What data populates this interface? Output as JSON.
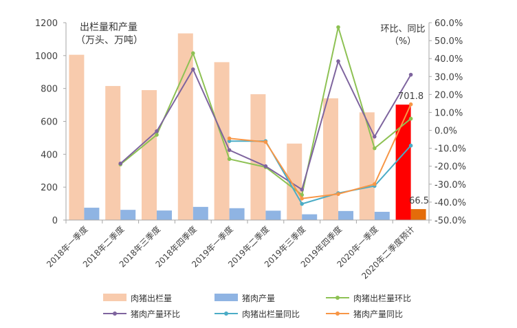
{
  "chart_data": {
    "type": "bar",
    "left_axis_title": [
      "出栏量和产量",
      "（万头、万吨）"
    ],
    "right_axis_title": [
      "环比、同比",
      "（%）"
    ],
    "categories": [
      "2018年一季度",
      "2018年二季度",
      "2018年三季度",
      "2018年四季度",
      "2019年一季度",
      "2019年二季度",
      "2019年三季度",
      "2019年四季度",
      "2020年一季度",
      "2020年二季度预计"
    ],
    "ylim_left": [
      0,
      1200
    ],
    "yticks_left": [
      "0",
      "200",
      "400",
      "600",
      "800",
      "1000",
      "1200"
    ],
    "ylim_right": [
      -50,
      60
    ],
    "yticks_right": [
      "-50.0%",
      "-40.0%",
      "-30.0%",
      "-20.0%",
      "-10.0%",
      "0.0%",
      "10.0%",
      "20.0%",
      "30.0%",
      "40.0%",
      "50.0%",
      "60.0%"
    ],
    "bar_series": [
      {
        "name": "肉猪出栏量",
        "color": "#F8CBAD",
        "highlight_color": "#FF0000",
        "values": [
          1005,
          815,
          790,
          1135,
          960,
          765,
          465,
          740,
          655,
          701.8
        ]
      },
      {
        "name": "猪肉产量",
        "color": "#8FB4E3",
        "highlight_color": "#E46C0A",
        "values": [
          75,
          62,
          58,
          80,
          72,
          57,
          35,
          55,
          50,
          66.5
        ]
      }
    ],
    "line_series": [
      {
        "name": "肉猪出栏量环比",
        "color": "#8DC153",
        "values": [
          null,
          -19,
          -2.5,
          43,
          -16,
          -20.5,
          -36,
          57.5,
          -10,
          6.5
        ]
      },
      {
        "name": "猪肉产量环比",
        "color": "#7E649E",
        "values": [
          null,
          -18.5,
          -0.5,
          34,
          -11,
          -20,
          -33,
          38.5,
          -3.5,
          31
        ]
      },
      {
        "name": "肉猪出栏量同比",
        "color": "#4BACC6",
        "values": [
          null,
          null,
          null,
          null,
          -6,
          -6,
          -41,
          -35,
          -31,
          -8.5
        ]
      },
      {
        "name": "猪肉产量同比",
        "color": "#F79646",
        "values": [
          null,
          null,
          null,
          null,
          -4.5,
          -6.5,
          -38,
          -35.5,
          -30,
          14.5
        ]
      }
    ],
    "annotations": [
      "701.8",
      "66.5"
    ],
    "legend_position": "bottom",
    "grid": false
  }
}
